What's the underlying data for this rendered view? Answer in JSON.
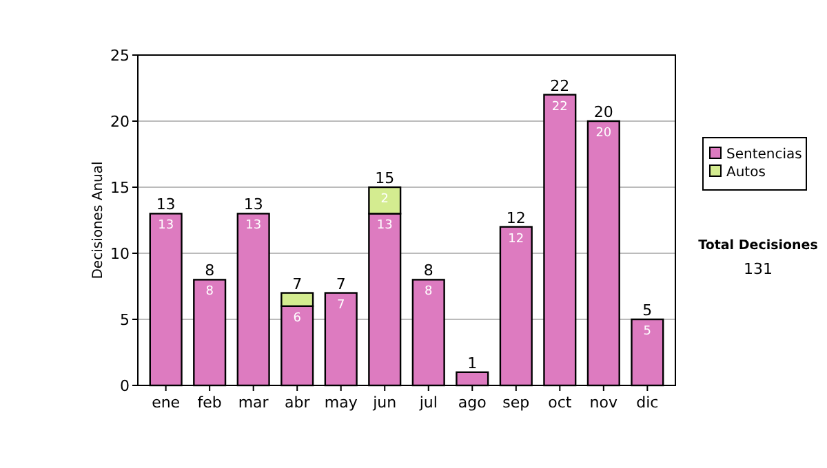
{
  "chart_data": {
    "type": "bar",
    "stacked": true,
    "ylabel": "Decisiones Anual",
    "categories": [
      "ene",
      "feb",
      "mar",
      "abr",
      "may",
      "jun",
      "jul",
      "ago",
      "sep",
      "oct",
      "nov",
      "dic"
    ],
    "series": [
      {
        "name": "Sentencias",
        "color": "#dd7bc0",
        "values": [
          13,
          8,
          13,
          6,
          7,
          13,
          8,
          1,
          12,
          22,
          20,
          5
        ],
        "value_labels": [
          "13",
          "8",
          "13",
          "6",
          "7",
          "13",
          "8",
          null,
          "12",
          "22",
          "20",
          "5"
        ]
      },
      {
        "name": "Autos",
        "color": "#d4ec90",
        "values": [
          0,
          0,
          0,
          1,
          0,
          2,
          0,
          0,
          0,
          0,
          0,
          0
        ],
        "value_labels": [
          null,
          null,
          null,
          null,
          null,
          "2",
          null,
          null,
          null,
          null,
          null,
          null
        ]
      }
    ],
    "totals": [
      "13",
      "8",
      "13",
      "7",
      "7",
      "15",
      "8",
      "1",
      "12",
      "22",
      "20",
      "5"
    ],
    "ylim": [
      0,
      25
    ],
    "yticks": [
      0,
      5,
      10,
      15,
      20,
      25
    ],
    "grid": "y",
    "legend": "right",
    "annotations": [
      "Total Decisiones",
      "131"
    ]
  }
}
